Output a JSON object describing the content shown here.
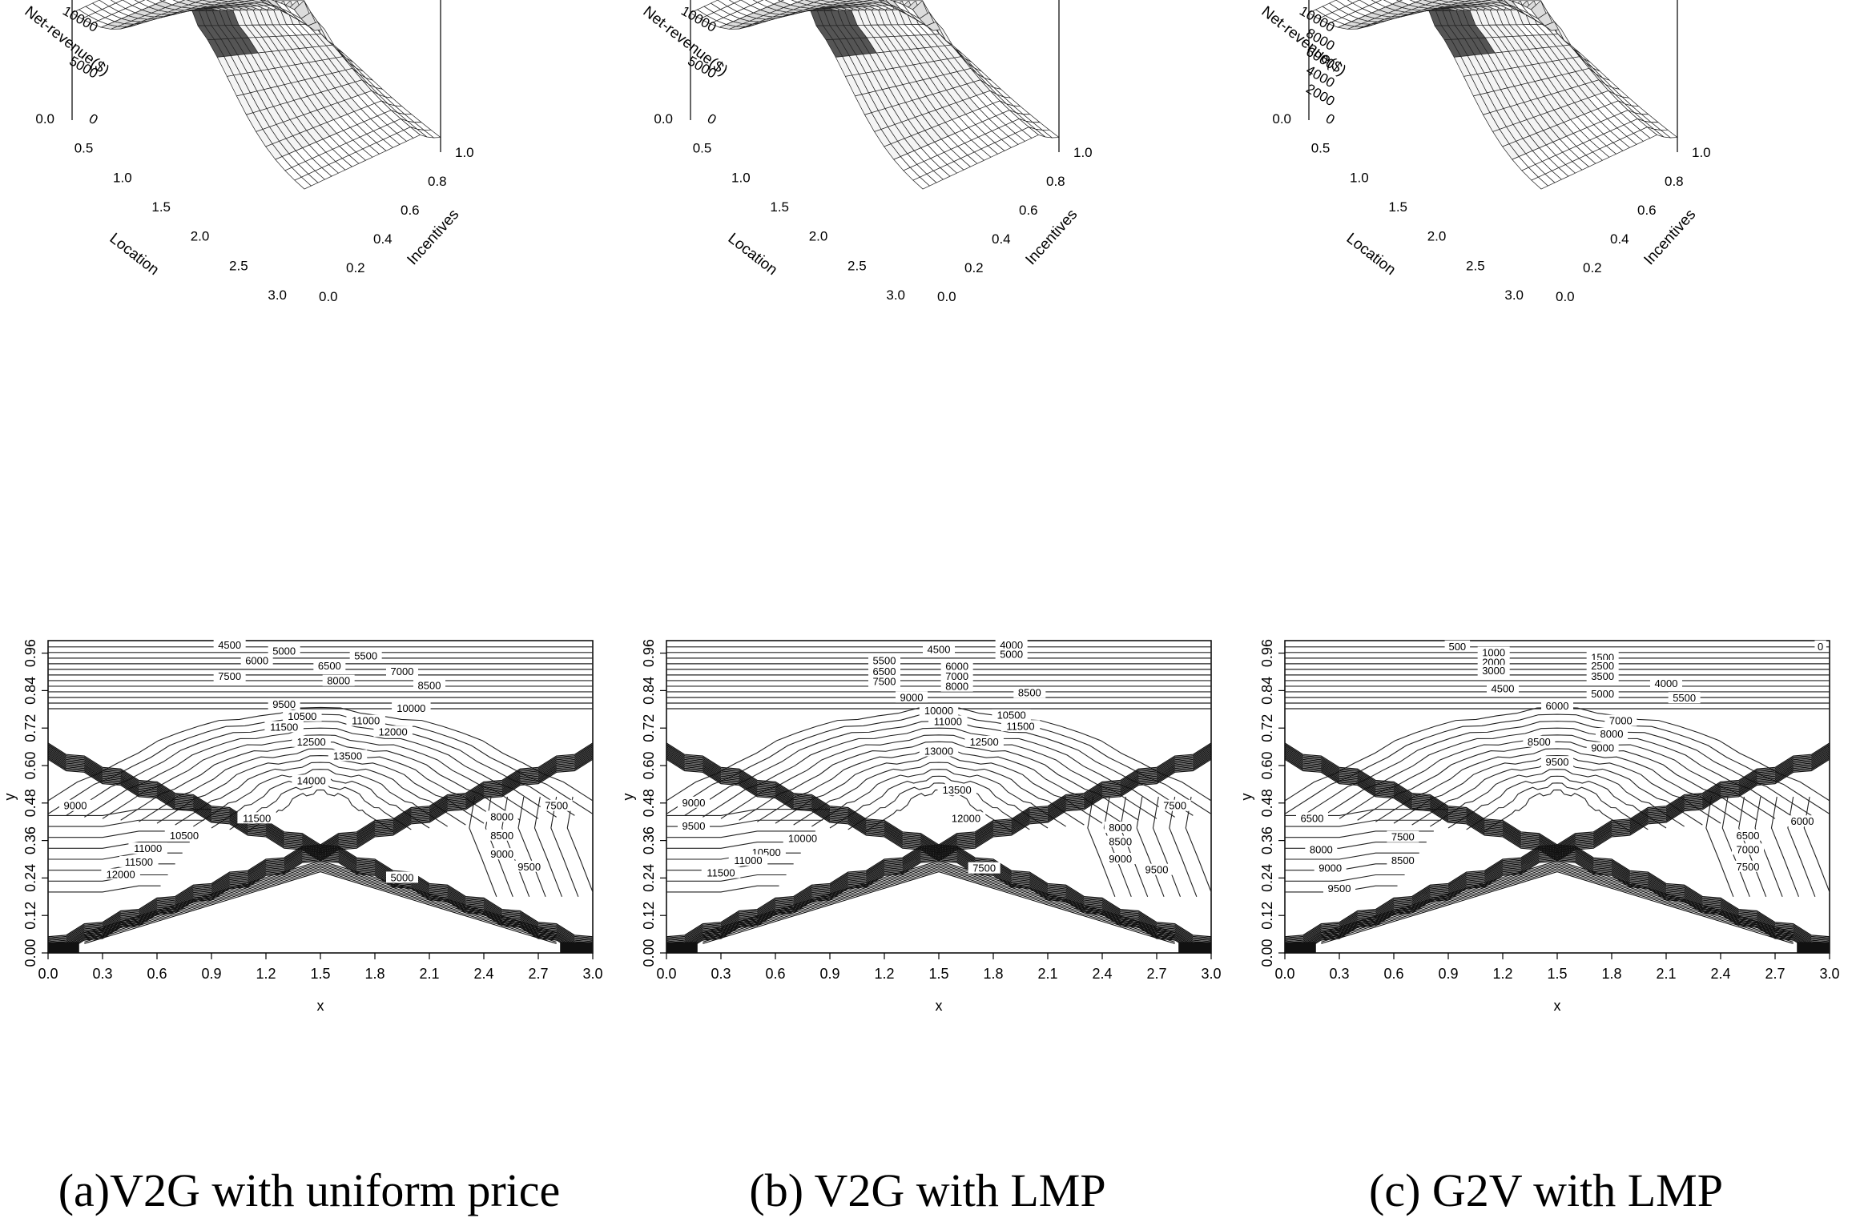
{
  "chart_data": [
    {
      "type": "surface",
      "panel": "a",
      "zlabel": "Net-revenue($)",
      "xlabel": "Location",
      "ylabel": "Incentives",
      "z_ticks": [
        "10000",
        "5000",
        "0"
      ],
      "x_ticks": [
        "0.0",
        "0.5",
        "1.0",
        "1.5",
        "2.0",
        "2.5",
        "3.0"
      ],
      "y_ticks": [
        "0.0",
        "0.2",
        "0.4",
        "0.6",
        "0.8",
        "1.0"
      ],
      "peak_location": 1.5,
      "z_max": 14000
    },
    {
      "type": "surface",
      "panel": "b",
      "zlabel": "Net-revenue($)",
      "xlabel": "Location",
      "ylabel": "Incentives",
      "z_ticks": [
        "10000",
        "5000",
        "0"
      ],
      "x_ticks": [
        "0.0",
        "0.5",
        "1.0",
        "1.5",
        "2.0",
        "2.5",
        "3.0"
      ],
      "y_ticks": [
        "0.0",
        "0.2",
        "0.4",
        "0.6",
        "0.8",
        "1.0"
      ],
      "peak_location": 1.5,
      "z_max": 14000
    },
    {
      "type": "surface",
      "panel": "c",
      "zlabel": "Net-revenue($)",
      "xlabel": "Location",
      "ylabel": "Incentives",
      "z_ticks": [
        "10000",
        "8000",
        "6000",
        "4000",
        "2000",
        "0"
      ],
      "x_ticks": [
        "0.0",
        "0.5",
        "1.0",
        "1.5",
        "2.0",
        "2.5",
        "3.0"
      ],
      "y_ticks": [
        "0.0",
        "0.2",
        "0.4",
        "0.6",
        "0.8",
        "1.0"
      ],
      "peak_location": 1.5,
      "z_max": 10000
    },
    {
      "type": "contour",
      "panel": "a",
      "xlabel": "x",
      "ylabel": "y",
      "xlim": [
        0,
        3
      ],
      "ylim": [
        0,
        1
      ],
      "x_ticks": [
        "0.0",
        "0.3",
        "0.6",
        "0.9",
        "1.2",
        "1.5",
        "1.8",
        "2.1",
        "2.4",
        "2.7",
        "3.0"
      ],
      "y_ticks": [
        "0.00",
        "0.12",
        "0.24",
        "0.36",
        "0.48",
        "0.60",
        "0.72",
        "0.84",
        "0.96"
      ],
      "peak": {
        "x": 1.5,
        "y": 0.5
      },
      "labels": [
        {
          "text": "4500",
          "x": 1.0,
          "y": 0.985
        },
        {
          "text": "5000",
          "x": 1.3,
          "y": 0.965
        },
        {
          "text": "5500",
          "x": 1.75,
          "y": 0.95
        },
        {
          "text": "6000",
          "x": 1.15,
          "y": 0.935
        },
        {
          "text": "6500",
          "x": 1.55,
          "y": 0.918
        },
        {
          "text": "7000",
          "x": 1.95,
          "y": 0.9
        },
        {
          "text": "7500",
          "x": 1.0,
          "y": 0.885
        },
        {
          "text": "8000",
          "x": 1.6,
          "y": 0.87
        },
        {
          "text": "8500",
          "x": 2.1,
          "y": 0.855
        },
        {
          "text": "9500",
          "x": 1.3,
          "y": 0.795
        },
        {
          "text": "10000",
          "x": 2.0,
          "y": 0.782
        },
        {
          "text": "10500",
          "x": 1.4,
          "y": 0.757
        },
        {
          "text": "11000",
          "x": 1.75,
          "y": 0.742
        },
        {
          "text": "11500",
          "x": 1.3,
          "y": 0.722
        },
        {
          "text": "12000",
          "x": 1.9,
          "y": 0.707
        },
        {
          "text": "12500",
          "x": 1.45,
          "y": 0.675
        },
        {
          "text": "13500",
          "x": 1.65,
          "y": 0.63
        },
        {
          "text": "14000",
          "x": 1.45,
          "y": 0.55
        },
        {
          "text": "9000",
          "x": 0.15,
          "y": 0.47
        },
        {
          "text": "11500",
          "x": 1.15,
          "y": 0.43
        },
        {
          "text": "8000",
          "x": 2.5,
          "y": 0.435
        },
        {
          "text": "7500",
          "x": 2.8,
          "y": 0.47
        },
        {
          "text": "10500",
          "x": 0.75,
          "y": 0.375
        },
        {
          "text": "8500",
          "x": 2.5,
          "y": 0.375
        },
        {
          "text": "11000",
          "x": 0.55,
          "y": 0.333
        },
        {
          "text": "9000",
          "x": 2.5,
          "y": 0.315
        },
        {
          "text": "11500",
          "x": 0.5,
          "y": 0.29
        },
        {
          "text": "9500",
          "x": 2.65,
          "y": 0.275
        },
        {
          "text": "12000",
          "x": 0.4,
          "y": 0.25
        },
        {
          "text": "5000",
          "x": 1.95,
          "y": 0.24
        }
      ]
    },
    {
      "type": "contour",
      "panel": "b",
      "xlabel": "x",
      "ylabel": "y",
      "xlim": [
        0,
        3
      ],
      "ylim": [
        0,
        1
      ],
      "x_ticks": [
        "0.0",
        "0.3",
        "0.6",
        "0.9",
        "1.2",
        "1.5",
        "1.8",
        "2.1",
        "2.4",
        "2.7",
        "3.0"
      ],
      "y_ticks": [
        "0.00",
        "0.12",
        "0.24",
        "0.36",
        "0.48",
        "0.60",
        "0.72",
        "0.84",
        "0.96"
      ],
      "peak": {
        "x": 1.5,
        "y": 0.5
      },
      "labels": [
        {
          "text": "4000",
          "x": 1.9,
          "y": 0.985
        },
        {
          "text": "4500",
          "x": 1.5,
          "y": 0.97
        },
        {
          "text": "5000",
          "x": 1.9,
          "y": 0.955
        },
        {
          "text": "5500",
          "x": 1.2,
          "y": 0.935
        },
        {
          "text": "6000",
          "x": 1.6,
          "y": 0.917
        },
        {
          "text": "6500",
          "x": 1.2,
          "y": 0.9
        },
        {
          "text": "7000",
          "x": 1.6,
          "y": 0.885
        },
        {
          "text": "7500",
          "x": 1.2,
          "y": 0.868
        },
        {
          "text": "8000",
          "x": 1.6,
          "y": 0.852
        },
        {
          "text": "8500",
          "x": 2.0,
          "y": 0.832
        },
        {
          "text": "9000",
          "x": 1.35,
          "y": 0.817
        },
        {
          "text": "10000",
          "x": 1.5,
          "y": 0.775
        },
        {
          "text": "10500",
          "x": 1.9,
          "y": 0.76
        },
        {
          "text": "11000",
          "x": 1.55,
          "y": 0.74
        },
        {
          "text": "11500",
          "x": 1.95,
          "y": 0.725
        },
        {
          "text": "12500",
          "x": 1.75,
          "y": 0.675
        },
        {
          "text": "13000",
          "x": 1.5,
          "y": 0.645
        },
        {
          "text": "13500",
          "x": 1.6,
          "y": 0.52
        },
        {
          "text": "9000",
          "x": 0.15,
          "y": 0.48
        },
        {
          "text": "12000",
          "x": 1.65,
          "y": 0.43
        },
        {
          "text": "7500",
          "x": 2.8,
          "y": 0.47
        },
        {
          "text": "8000",
          "x": 2.5,
          "y": 0.4
        },
        {
          "text": "9500",
          "x": 0.15,
          "y": 0.405
        },
        {
          "text": "8500",
          "x": 2.5,
          "y": 0.355
        },
        {
          "text": "10000",
          "x": 0.75,
          "y": 0.365
        },
        {
          "text": "10500",
          "x": 0.55,
          "y": 0.32
        },
        {
          "text": "9000",
          "x": 2.5,
          "y": 0.3
        },
        {
          "text": "11000",
          "x": 0.45,
          "y": 0.295
        },
        {
          "text": "9500",
          "x": 2.7,
          "y": 0.265
        },
        {
          "text": "11500",
          "x": 0.3,
          "y": 0.255
        },
        {
          "text": "7500",
          "x": 1.75,
          "y": 0.27
        }
      ]
    },
    {
      "type": "contour",
      "panel": "c",
      "xlabel": "x",
      "ylabel": "y",
      "xlim": [
        0,
        3
      ],
      "ylim": [
        0,
        1
      ],
      "x_ticks": [
        "0.0",
        "0.3",
        "0.6",
        "0.9",
        "1.2",
        "1.5",
        "1.8",
        "2.1",
        "2.4",
        "2.7",
        "3.0"
      ],
      "y_ticks": [
        "0.00",
        "0.12",
        "0.24",
        "0.36",
        "0.48",
        "0.60",
        "0.72",
        "0.84",
        "0.96"
      ],
      "peak": {
        "x": 1.5,
        "y": 0.5
      },
      "labels": [
        {
          "text": "500",
          "x": 0.95,
          "y": 0.98
        },
        {
          "text": "0",
          "x": 2.95,
          "y": 0.98
        },
        {
          "text": "1000",
          "x": 1.15,
          "y": 0.96
        },
        {
          "text": "1500",
          "x": 1.75,
          "y": 0.945
        },
        {
          "text": "2000",
          "x": 1.15,
          "y": 0.93
        },
        {
          "text": "2500",
          "x": 1.75,
          "y": 0.918
        },
        {
          "text": "3000",
          "x": 1.15,
          "y": 0.902
        },
        {
          "text": "3500",
          "x": 1.75,
          "y": 0.885
        },
        {
          "text": "4000",
          "x": 2.1,
          "y": 0.862
        },
        {
          "text": "4500",
          "x": 1.2,
          "y": 0.845
        },
        {
          "text": "5000",
          "x": 1.75,
          "y": 0.828
        },
        {
          "text": "5500",
          "x": 2.2,
          "y": 0.815
        },
        {
          "text": "6000",
          "x": 1.5,
          "y": 0.79
        },
        {
          "text": "7000",
          "x": 1.85,
          "y": 0.742
        },
        {
          "text": "8000",
          "x": 1.8,
          "y": 0.7
        },
        {
          "text": "8500",
          "x": 1.4,
          "y": 0.675
        },
        {
          "text": "9000",
          "x": 1.75,
          "y": 0.655
        },
        {
          "text": "9500",
          "x": 1.5,
          "y": 0.61
        },
        {
          "text": "6500",
          "x": 0.15,
          "y": 0.43
        },
        {
          "text": "6000",
          "x": 2.85,
          "y": 0.42
        },
        {
          "text": "7500",
          "x": 0.65,
          "y": 0.37
        },
        {
          "text": "6500",
          "x": 2.55,
          "y": 0.375
        },
        {
          "text": "8000",
          "x": 0.2,
          "y": 0.33
        },
        {
          "text": "7000",
          "x": 2.55,
          "y": 0.33
        },
        {
          "text": "8500",
          "x": 0.65,
          "y": 0.295
        },
        {
          "text": "9000",
          "x": 0.25,
          "y": 0.27
        },
        {
          "text": "7500",
          "x": 2.55,
          "y": 0.275
        },
        {
          "text": "9500",
          "x": 0.3,
          "y": 0.205
        }
      ]
    }
  ],
  "captions": {
    "a": "(a)V2G with uniform price",
    "b": "(b) V2G with LMP",
    "c": "(c) G2V with LMP"
  }
}
